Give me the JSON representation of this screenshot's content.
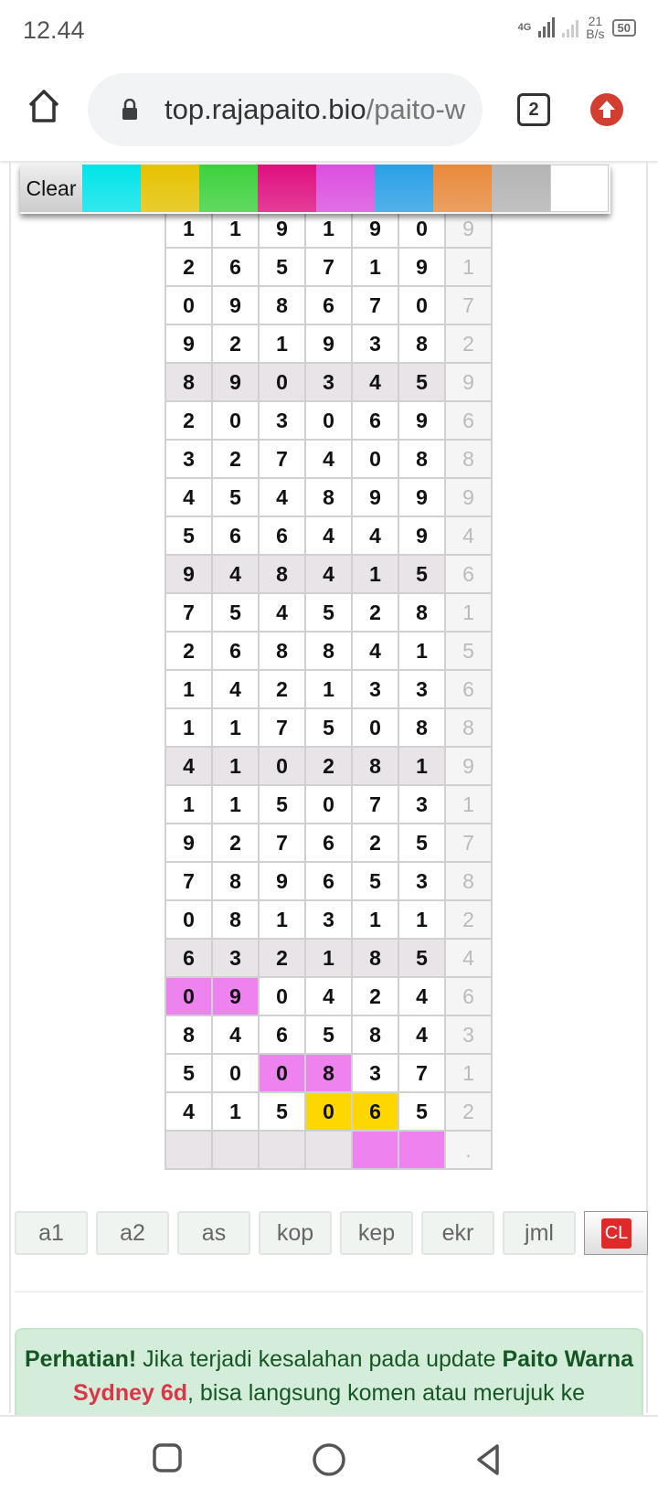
{
  "status": {
    "time": "12.44",
    "network": "4G",
    "speed_value": "21",
    "speed_unit": "B/s",
    "battery": "50"
  },
  "browser": {
    "url_host": "top.rajapaito.bio",
    "url_path": "/paito-w",
    "tab_count": "2"
  },
  "palette": {
    "clear_label": "Clear",
    "colors": [
      "#00e5ea",
      "#e6c200",
      "#3cd23c",
      "#e00f80",
      "#dc4ee0",
      "#2aa0e6",
      "#e98a3c",
      "#b4b4b4",
      "#ffffff"
    ]
  },
  "table": {
    "rows": [
      [
        "1",
        "1",
        "9",
        "1",
        "9",
        "0",
        "9"
      ],
      [
        "2",
        "6",
        "5",
        "7",
        "1",
        "9",
        "1"
      ],
      [
        "0",
        "9",
        "8",
        "6",
        "7",
        "0",
        "7"
      ],
      [
        "9",
        "2",
        "1",
        "9",
        "3",
        "8",
        "2"
      ],
      [
        "8",
        "9",
        "0",
        "3",
        "4",
        "5",
        "9"
      ],
      [
        "2",
        "0",
        "3",
        "0",
        "6",
        "9",
        "6"
      ],
      [
        "3",
        "2",
        "7",
        "4",
        "0",
        "8",
        "8"
      ],
      [
        "4",
        "5",
        "4",
        "8",
        "9",
        "9",
        "9"
      ],
      [
        "5",
        "6",
        "6",
        "4",
        "4",
        "9",
        "4"
      ],
      [
        "9",
        "4",
        "8",
        "4",
        "1",
        "5",
        "6"
      ],
      [
        "7",
        "5",
        "4",
        "5",
        "2",
        "8",
        "1"
      ],
      [
        "2",
        "6",
        "8",
        "8",
        "4",
        "1",
        "5"
      ],
      [
        "1",
        "4",
        "2",
        "1",
        "3",
        "3",
        "6"
      ],
      [
        "1",
        "1",
        "7",
        "5",
        "0",
        "8",
        "8"
      ],
      [
        "4",
        "1",
        "0",
        "2",
        "8",
        "1",
        "9"
      ],
      [
        "1",
        "1",
        "5",
        "0",
        "7",
        "3",
        "1"
      ],
      [
        "9",
        "2",
        "7",
        "6",
        "2",
        "5",
        "7"
      ],
      [
        "7",
        "8",
        "9",
        "6",
        "5",
        "3",
        "8"
      ],
      [
        "0",
        "8",
        "1",
        "3",
        "1",
        "1",
        "2"
      ],
      [
        "6",
        "3",
        "2",
        "1",
        "8",
        "5",
        "4"
      ],
      [
        "0",
        "9",
        "0",
        "4",
        "2",
        "4",
        "6"
      ],
      [
        "8",
        "4",
        "6",
        "5",
        "8",
        "4",
        "3"
      ],
      [
        "5",
        "0",
        "0",
        "8",
        "3",
        "7",
        "1"
      ],
      [
        "4",
        "1",
        "5",
        "0",
        "6",
        "5",
        "2"
      ],
      [
        "",
        "",
        "",
        "",
        "",
        "",
        "."
      ]
    ],
    "highlights": [
      {
        "row": 20,
        "col": 0,
        "color": "#ee82ee"
      },
      {
        "row": 20,
        "col": 1,
        "color": "#ee82ee"
      },
      {
        "row": 22,
        "col": 2,
        "color": "#ee82ee"
      },
      {
        "row": 22,
        "col": 3,
        "color": "#ee82ee"
      },
      {
        "row": 23,
        "col": 3,
        "color": "#ffd700"
      },
      {
        "row": 23,
        "col": 4,
        "color": "#ffd700"
      },
      {
        "row": 24,
        "col": 4,
        "color": "#ee82ee"
      },
      {
        "row": 24,
        "col": 5,
        "color": "#ee82ee"
      }
    ]
  },
  "buttons": [
    "a1",
    "a2",
    "as",
    "kop",
    "kep",
    "ekr",
    "jml"
  ],
  "clear_button": "CL",
  "notice": {
    "bold1": "Perhatian!",
    "text1": " Jika terjadi kesalahan pada update ",
    "bold2": "Paito Warna",
    "red": "Sydney 6d",
    "text2": ", bisa langsung komen atau merujuk ke"
  }
}
